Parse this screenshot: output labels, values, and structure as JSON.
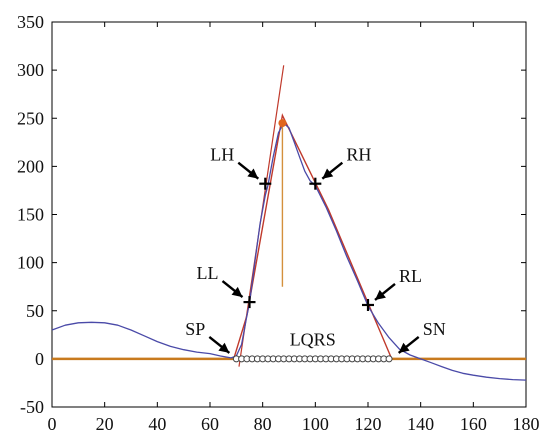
{
  "chart_data": {
    "type": "line",
    "title": "",
    "xlabel": "",
    "ylabel": "",
    "xlim": [
      0,
      180
    ],
    "ylim": [
      -50,
      350
    ],
    "xticks": [
      0,
      20,
      40,
      60,
      80,
      100,
      120,
      140,
      160,
      180
    ],
    "yticks": [
      -50,
      0,
      50,
      100,
      150,
      200,
      250,
      300,
      350
    ],
    "grid": false,
    "legend": "none",
    "colors": {
      "signal": "#4a4aa8",
      "fit": "#c0392b",
      "baseline": "#c87a1e",
      "peak_line": "#d4903c",
      "peak_marker": "#e0661f",
      "marker": "#000000"
    },
    "series": [
      {
        "role": "signal",
        "x": [
          0,
          5,
          10,
          15,
          20,
          25,
          30,
          35,
          40,
          45,
          50,
          55,
          60,
          64,
          68,
          70,
          72,
          74,
          75,
          77,
          79,
          81,
          82,
          84,
          86,
          88,
          90,
          92,
          94,
          96,
          98,
          100,
          104,
          108,
          112,
          116,
          120,
          124,
          128,
          132,
          136,
          140,
          144,
          148,
          152,
          156,
          160,
          165,
          170,
          175,
          180
        ],
        "y": [
          30,
          35,
          37.5,
          38,
          37.5,
          35,
          30,
          24,
          18,
          13,
          9.5,
          7,
          5.5,
          3,
          1,
          3,
          15,
          45,
          58,
          100,
          140,
          170,
          180,
          210,
          235,
          245,
          240,
          225,
          210,
          195,
          185,
          180,
          158,
          133,
          106,
          81,
          55,
          37,
          22,
          10,
          4,
          0,
          -4,
          -8,
          -12,
          -15,
          -17,
          -19,
          -20.5,
          -21.5,
          -22
        ]
      },
      {
        "role": "fit",
        "x": [
          69,
          74,
          87.5,
          105,
          129
        ],
        "y": [
          0,
          45,
          253,
          155,
          0
        ]
      },
      {
        "role": "tangent",
        "x": [
          71,
          88
        ],
        "y": [
          -8,
          305
        ]
      }
    ],
    "baseline": {
      "y": 0,
      "x": [
        0,
        180
      ]
    },
    "peak": {
      "x": 87.5,
      "y": 245,
      "line_from": 75
    },
    "qrs_markers": [
      70,
      72,
      74,
      76,
      78,
      80,
      82,
      84,
      86,
      88,
      90,
      92,
      94,
      96,
      98,
      100,
      102,
      104,
      106,
      108,
      110,
      112,
      114,
      116,
      118,
      120,
      122,
      124,
      126,
      128
    ],
    "annotations": [
      {
        "id": "lh",
        "text": "LH",
        "x": 81,
        "y": 182,
        "arrow": "right",
        "marker": "plus"
      },
      {
        "id": "rh",
        "text": "RH",
        "x": 100,
        "y": 182,
        "arrow": "left",
        "marker": "plus"
      },
      {
        "id": "ll",
        "text": "LL",
        "x": 75,
        "y": 59,
        "arrow": "right",
        "marker": "plus"
      },
      {
        "id": "rl",
        "text": "RL",
        "x": 120,
        "y": 56,
        "arrow": "left",
        "marker": "plus"
      },
      {
        "id": "sp",
        "text": "SP",
        "x": 70,
        "y": 1,
        "arrow": "right",
        "marker": "none"
      },
      {
        "id": "sn",
        "text": "SN",
        "x": 129,
        "y": 1,
        "arrow": "left",
        "marker": "none"
      },
      {
        "id": "lqrs",
        "text": "LQRS",
        "x": 99,
        "y": 14,
        "arrow": "none",
        "marker": "none"
      }
    ]
  }
}
